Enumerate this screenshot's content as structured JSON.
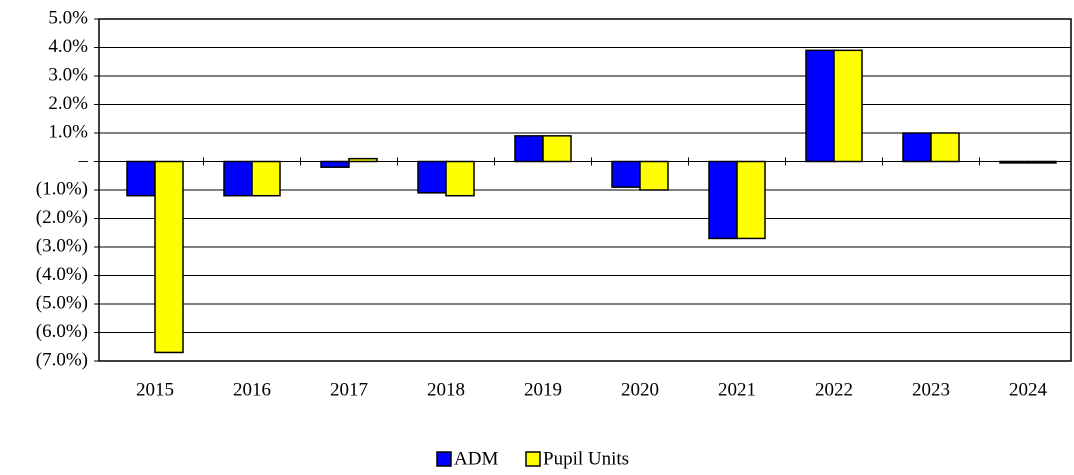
{
  "chart_data": {
    "type": "bar",
    "categories": [
      "2015",
      "2016",
      "2017",
      "2018",
      "2019",
      "2020",
      "2021",
      "2022",
      "2023",
      "2024"
    ],
    "series": [
      {
        "name": "ADM",
        "color": "#0000ff",
        "values": [
          -1.2,
          -1.2,
          -0.2,
          -1.1,
          0.9,
          -0.9,
          -2.7,
          3.9,
          1.0,
          -0.05
        ]
      },
      {
        "name": "Pupil Units",
        "color": "#ffff00",
        "values": [
          -6.7,
          -1.2,
          0.1,
          -1.2,
          0.9,
          -1.0,
          -2.7,
          3.9,
          1.0,
          -0.05
        ]
      }
    ],
    "ylim": [
      -7,
      5
    ],
    "yticks": [
      {
        "value": 5,
        "label": "5.0%"
      },
      {
        "value": 4,
        "label": "4.0%"
      },
      {
        "value": 3,
        "label": "3.0%"
      },
      {
        "value": 2,
        "label": "2.0%"
      },
      {
        "value": 1,
        "label": "1.0%"
      },
      {
        "value": 0,
        "label": "–"
      },
      {
        "value": -1,
        "label": "(1.0%)"
      },
      {
        "value": -2,
        "label": "(2.0%)"
      },
      {
        "value": -3,
        "label": "(3.0%)"
      },
      {
        "value": -4,
        "label": "(4.0%)"
      },
      {
        "value": -5,
        "label": "(5.0%)"
      },
      {
        "value": -6,
        "label": "(6.0%)"
      },
      {
        "value": -7,
        "label": "(7.0%)"
      }
    ],
    "grid": true
  }
}
